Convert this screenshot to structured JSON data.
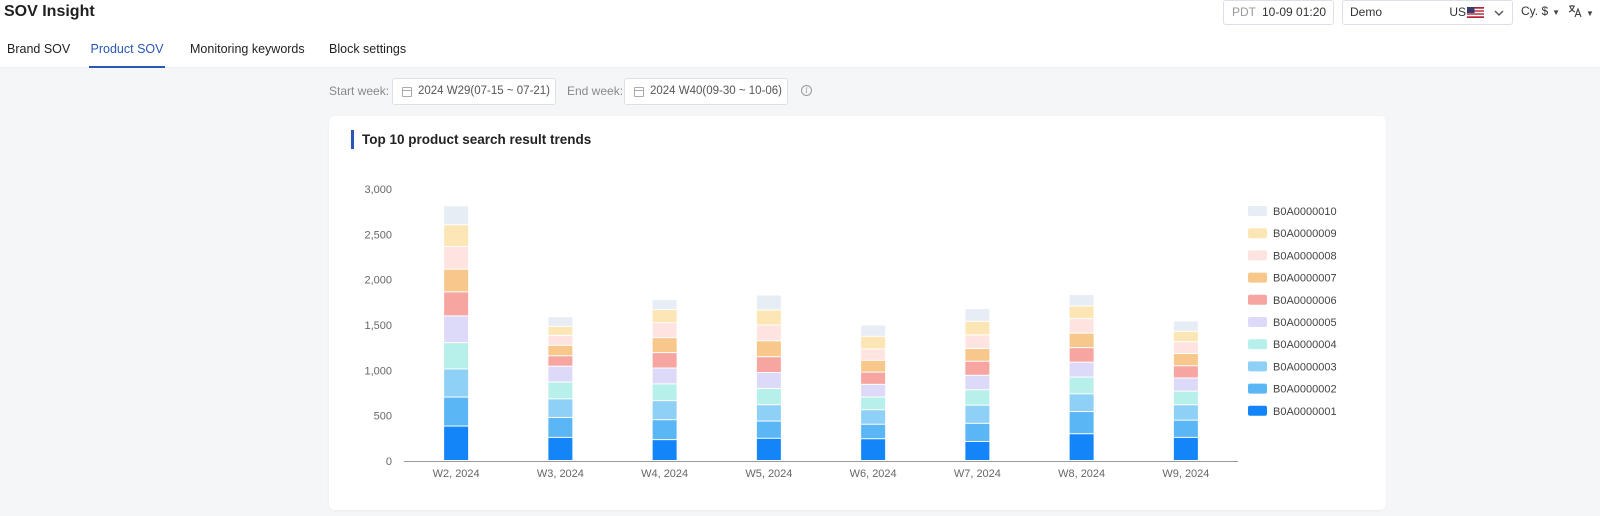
{
  "app": {
    "title": "SOV Insight"
  },
  "header": {
    "timezone": "PDT",
    "datetime": "10-09 01:20",
    "account": "Demo",
    "region": "US",
    "currency": "Cy. $",
    "language_icon": "translate-icon"
  },
  "tabs": [
    {
      "label": "Brand SOV",
      "active": false
    },
    {
      "label": "Product SOV",
      "active": true
    },
    {
      "label": "Monitoring keywords",
      "active": false
    },
    {
      "label": "Block settings",
      "active": false
    }
  ],
  "filters": {
    "start_label": "Start week:",
    "start_value": "2024 W29(07-15 ~ 07-21)",
    "end_label": "End week:",
    "end_value": "2024 W40(09-30 ~ 10-06)",
    "info_icon": "info-icon"
  },
  "chart_card": {
    "title": "Top 10 product search result trends"
  },
  "colors": {
    "accent": "#2a56b5"
  },
  "chart_data": {
    "type": "bar",
    "stacked": true,
    "categories": [
      "W2, 2024",
      "W3, 2024",
      "W4, 2024",
      "W5, 2024",
      "W6, 2024",
      "W7, 2024",
      "W8, 2024",
      "W9, 2024"
    ],
    "ylim": [
      0,
      3000
    ],
    "yticks": [
      "0",
      "500",
      "1,000",
      "1,500",
      "2,000",
      "2,500",
      "3,000"
    ],
    "ytick_values": [
      0,
      500,
      1000,
      1500,
      2000,
      2500,
      3000
    ],
    "legend_position": "right",
    "grid": false,
    "series": [
      {
        "name": "B0A0000001",
        "color": "#1485f9",
        "values": [
          380,
          255,
          230,
          245,
          240,
          210,
          295,
          255
        ]
      },
      {
        "name": "B0A0000002",
        "color": "#5ab6f5",
        "values": [
          320,
          220,
          220,
          190,
          160,
          200,
          245,
          190
        ]
      },
      {
        "name": "B0A0000003",
        "color": "#8fd0f7",
        "values": [
          310,
          205,
          210,
          180,
          160,
          200,
          195,
          170
        ]
      },
      {
        "name": "B0A0000004",
        "color": "#b7efea",
        "values": [
          290,
          185,
          185,
          180,
          140,
          170,
          185,
          150
        ]
      },
      {
        "name": "B0A0000005",
        "color": "#ddd9f8",
        "values": [
          295,
          175,
          175,
          175,
          140,
          160,
          165,
          145
        ]
      },
      {
        "name": "B0A0000006",
        "color": "#f6a5a0",
        "values": [
          265,
          115,
          170,
          175,
          135,
          155,
          160,
          135
        ]
      },
      {
        "name": "B0A0000007",
        "color": "#f8c78b",
        "values": [
          250,
          115,
          165,
          175,
          130,
          140,
          160,
          135
        ]
      },
      {
        "name": "B0A0000008",
        "color": "#fde4e1",
        "values": [
          250,
          110,
          165,
          175,
          125,
          150,
          160,
          130
        ]
      },
      {
        "name": "B0A0000009",
        "color": "#fde6b5",
        "values": [
          240,
          100,
          145,
          165,
          140,
          150,
          140,
          115
        ]
      },
      {
        "name": "B0A0000010",
        "color": "#e7edf4",
        "values": [
          210,
          105,
          110,
          165,
          125,
          140,
          125,
          115
        ]
      }
    ]
  }
}
